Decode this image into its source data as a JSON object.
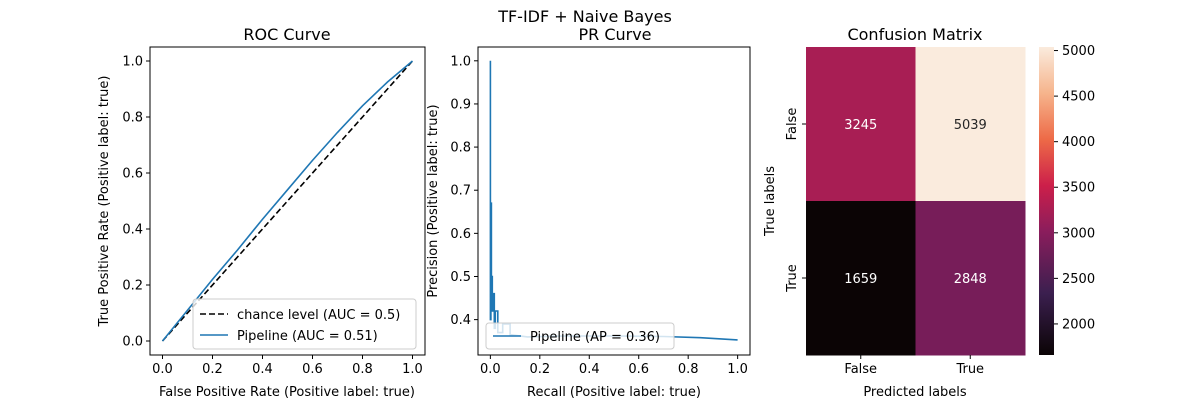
{
  "figure": {
    "suptitle": "TF-IDF + Naive Bayes"
  },
  "chart_data": [
    {
      "type": "line",
      "title": "ROC Curve",
      "xlabel": "False Positive Rate (Positive label: true)",
      "ylabel": "True Positive Rate (Positive label: true)",
      "xlim": [
        -0.05,
        1.05
      ],
      "ylim": [
        -0.05,
        1.05
      ],
      "xticks": [
        "0.0",
        "0.2",
        "0.4",
        "0.6",
        "0.8",
        "1.0"
      ],
      "yticks": [
        "0.0",
        "0.2",
        "0.4",
        "0.6",
        "0.8",
        "1.0"
      ],
      "legend_position": "lower-right",
      "series": [
        {
          "name": "chance level (AUC = 0.5)",
          "color": "#000000",
          "style": "dashed",
          "x": [
            0,
            1
          ],
          "y": [
            0,
            1
          ]
        },
        {
          "name": "Pipeline (AUC = 0.51)",
          "color": "#1f77b4",
          "style": "solid",
          "x": [
            0,
            0.1,
            0.2,
            0.3,
            0.4,
            0.5,
            0.6,
            0.7,
            0.8,
            0.9,
            1.0
          ],
          "y": [
            0,
            0.11,
            0.22,
            0.325,
            0.435,
            0.54,
            0.645,
            0.745,
            0.84,
            0.925,
            1.0
          ]
        }
      ]
    },
    {
      "type": "line",
      "title": "PR Curve",
      "xlabel": "Recall (Positive label: true)",
      "ylabel": "Precision (Positive label: true)",
      "xlim": [
        -0.05,
        1.05
      ],
      "ylim": [
        0.318,
        1.032
      ],
      "xticks": [
        "0.0",
        "0.2",
        "0.4",
        "0.6",
        "0.8",
        "1.0"
      ],
      "yticks": [
        "0.4",
        "0.5",
        "0.6",
        "0.7",
        "0.8",
        "0.9",
        "1.0"
      ],
      "legend_position": "lower-left",
      "series": [
        {
          "name": "Pipeline (AP = 0.36)",
          "color": "#1f77b4",
          "style": "steps",
          "x": [
            0,
            0,
            0.002,
            0.002,
            0.004,
            0.004,
            0.006,
            0.006,
            0.008,
            0.008,
            0.012,
            0.012,
            0.016,
            0.016,
            0.02,
            0.02,
            0.03,
            0.03,
            0.05,
            0.05,
            0.08,
            0.08,
            0.15,
            0.3,
            0.5,
            0.7,
            0.85,
            1.0
          ],
          "y": [
            1.0,
            0.4,
            0.4,
            0.67,
            0.67,
            0.45,
            0.45,
            0.5,
            0.5,
            0.42,
            0.42,
            0.46,
            0.46,
            0.38,
            0.38,
            0.42,
            0.42,
            0.37,
            0.37,
            0.39,
            0.39,
            0.365,
            0.36,
            0.362,
            0.362,
            0.361,
            0.358,
            0.353
          ]
        }
      ]
    },
    {
      "type": "heatmap",
      "title": "Confusion Matrix",
      "xlabel": "Predicted labels",
      "ylabel": "True labels",
      "x_categories": [
        "False",
        "True"
      ],
      "y_categories": [
        "False",
        "True"
      ],
      "values": [
        [
          3245,
          5039
        ],
        [
          1659,
          2848
        ]
      ],
      "colorbar": {
        "min": 1659,
        "max": 5039,
        "ticks": [
          "2000",
          "2500",
          "3000",
          "3500",
          "4000",
          "4500",
          "5000"
        ]
      }
    }
  ]
}
